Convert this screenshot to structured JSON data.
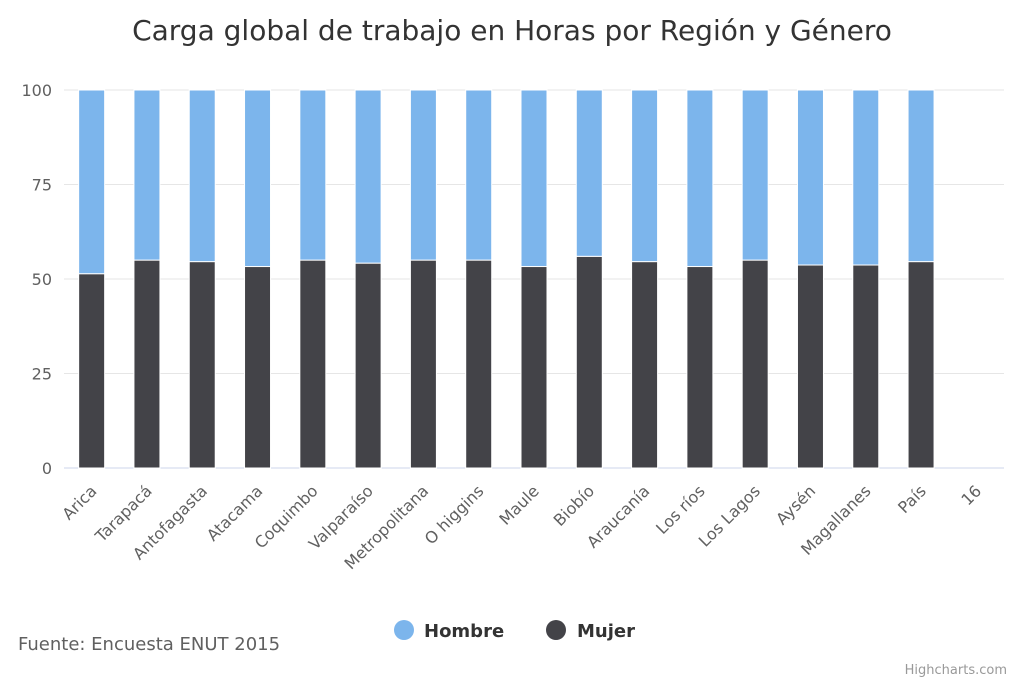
{
  "chart_data": {
    "type": "bar",
    "stacked": true,
    "title": "Carga global de trabajo en Horas por Región y Género",
    "categories": [
      "Arica",
      "Tarapacá",
      "Antofagasta",
      "Atacama",
      "Coquimbo",
      "Valparaíso",
      "Metropolitana",
      "O higgins",
      "Maule",
      "Biobío",
      "Araucanía",
      "Los ríos",
      "Los Lagos",
      "Aysén",
      "Magallanes",
      "País",
      "16"
    ],
    "series": [
      {
        "name": "Hombre",
        "color": "#7cb5ec",
        "values": [
          48.6,
          45.0,
          45.4,
          46.7,
          45.0,
          45.8,
          45.0,
          45.0,
          46.7,
          44.0,
          45.4,
          46.7,
          45.0,
          46.3,
          46.3,
          45.4,
          null
        ]
      },
      {
        "name": "Mujer",
        "color": "#434348",
        "values": [
          51.4,
          55.0,
          54.6,
          53.3,
          55.0,
          54.2,
          55.0,
          55.0,
          53.3,
          56.0,
          54.6,
          53.3,
          55.0,
          53.7,
          53.7,
          54.6,
          null
        ]
      }
    ],
    "yticks": [
      0,
      25,
      50,
      75,
      100
    ],
    "ylim": [
      0,
      100
    ],
    "grid": true,
    "legend_position": "bottom"
  },
  "caption": "Fuente: Encuesta ENUT 2015",
  "credits": "Highcharts.com"
}
